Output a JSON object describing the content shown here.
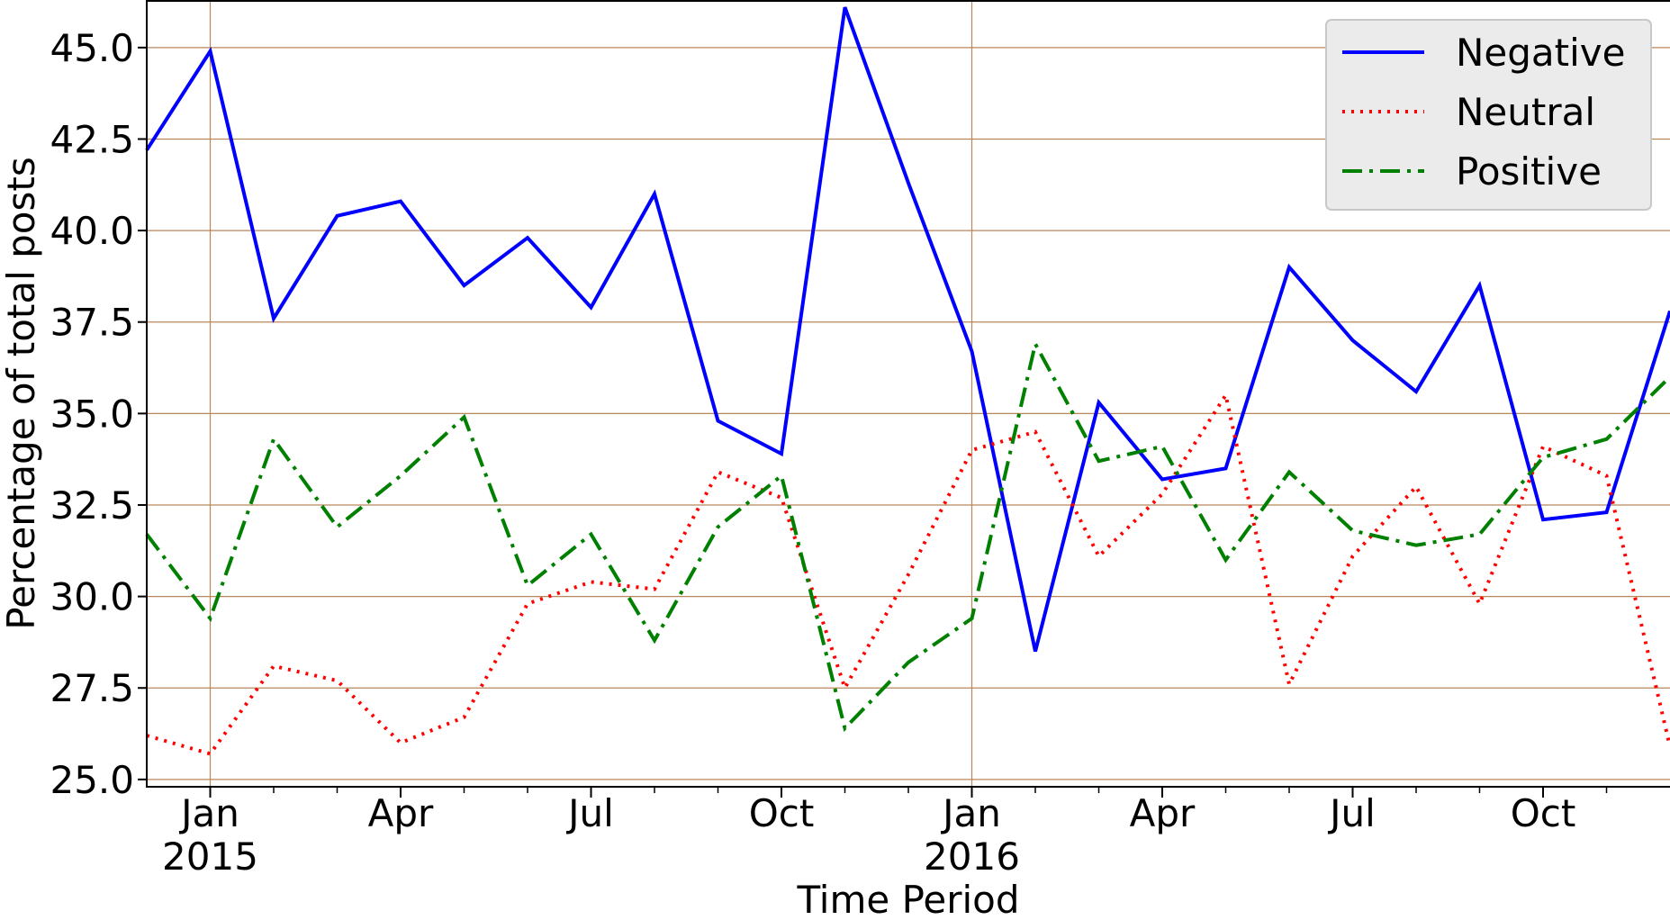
{
  "chart_data": {
    "type": "line",
    "title": "",
    "xlabel": "Time Period",
    "ylabel": "Percentage of total posts",
    "x": [
      "2014-12",
      "2015-01",
      "2015-02",
      "2015-03",
      "2015-04",
      "2015-05",
      "2015-06",
      "2015-07",
      "2015-08",
      "2015-09",
      "2015-10",
      "2015-11",
      "2015-12",
      "2016-01",
      "2016-02",
      "2016-03",
      "2016-04",
      "2016-05",
      "2016-06",
      "2016-07",
      "2016-08",
      "2016-09",
      "2016-10",
      "2016-11",
      "2016-12"
    ],
    "xlim": [
      "2014-12",
      "2016-12"
    ],
    "ylim": [
      24.8,
      46.3
    ],
    "yticks": [
      25.0,
      27.5,
      30.0,
      32.5,
      35.0,
      37.5,
      40.0,
      42.5,
      45.0
    ],
    "ytick_labels": [
      "25.0",
      "27.5",
      "30.0",
      "32.5",
      "35.0",
      "37.5",
      "40.0",
      "42.5",
      "45.0"
    ],
    "xticks_major": [
      {
        "date": "2015-01",
        "label": "Jan",
        "sublabel": "2015"
      },
      {
        "date": "2015-04",
        "label": "Apr",
        "sublabel": ""
      },
      {
        "date": "2015-07",
        "label": "Jul",
        "sublabel": ""
      },
      {
        "date": "2015-10",
        "label": "Oct",
        "sublabel": ""
      },
      {
        "date": "2016-01",
        "label": "Jan",
        "sublabel": "2016"
      },
      {
        "date": "2016-04",
        "label": "Apr",
        "sublabel": ""
      },
      {
        "date": "2016-07",
        "label": "Jul",
        "sublabel": ""
      },
      {
        "date": "2016-10",
        "label": "Oct",
        "sublabel": ""
      }
    ],
    "xticks_minor": [
      "2015-02",
      "2015-03",
      "2015-05",
      "2015-06",
      "2015-08",
      "2015-09",
      "2015-11",
      "2015-12",
      "2016-02",
      "2016-03",
      "2016-05",
      "2016-06",
      "2016-08",
      "2016-09",
      "2016-11"
    ],
    "vertical_gridlines": [
      "2015-01",
      "2016-01"
    ],
    "grid": true,
    "legend_position": "top-right",
    "series": [
      {
        "name": "Negative",
        "color": "#0000ff",
        "style": "solid",
        "values": [
          42.2,
          44.9,
          37.6,
          40.4,
          40.8,
          38.5,
          39.8,
          37.9,
          41.0,
          34.8,
          33.9,
          46.1,
          41.3,
          36.7,
          28.5,
          35.3,
          33.2,
          33.5,
          39.0,
          37.0,
          35.6,
          38.5,
          32.1,
          32.3,
          37.8
        ]
      },
      {
        "name": "Neutral",
        "color": "#ff0000",
        "style": "dotted",
        "values": [
          26.2,
          25.7,
          28.1,
          27.7,
          26.0,
          26.7,
          29.8,
          30.4,
          30.2,
          33.4,
          32.7,
          27.5,
          30.6,
          34.0,
          34.5,
          31.1,
          32.8,
          35.5,
          27.6,
          31.1,
          33.0,
          29.8,
          34.1,
          33.3,
          25.9
        ]
      },
      {
        "name": "Positive",
        "color": "#008000",
        "style": "dashdot",
        "values": [
          31.7,
          29.4,
          34.3,
          31.9,
          33.3,
          34.9,
          30.3,
          31.7,
          28.8,
          31.9,
          33.3,
          26.4,
          28.2,
          29.4,
          36.9,
          33.7,
          34.1,
          31.0,
          33.4,
          31.8,
          31.4,
          31.7,
          33.8,
          34.3,
          36.0
        ]
      }
    ]
  }
}
